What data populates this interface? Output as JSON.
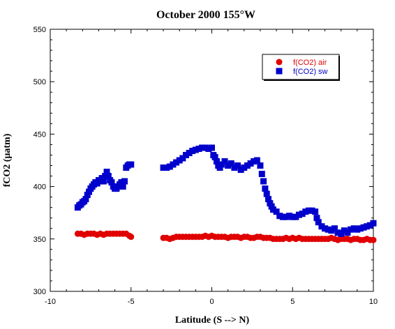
{
  "chart_data": {
    "type": "scatter",
    "title": "October 2000 155°W",
    "xlabel": "Latitude (S --> N)",
    "ylabel": "fCO2 (μatm)",
    "xlim": [
      -10,
      10
    ],
    "ylim": [
      300,
      550
    ],
    "xticks": [
      -10,
      -5,
      0,
      5,
      10
    ],
    "yticks": [
      300,
      350,
      400,
      450,
      500,
      550
    ],
    "xtick_labels": [
      "-10",
      "-5",
      "0",
      "5",
      "10"
    ],
    "ytick_labels": [
      "300",
      "350",
      "400",
      "450",
      "500",
      "550"
    ],
    "grid": false,
    "legend_position": "top-right",
    "series": [
      {
        "name": "f(CO2) air",
        "color": "#e00000",
        "marker": "circle",
        "x": [
          -8.3,
          -8.1,
          -7.9,
          -7.7,
          -7.5,
          -7.3,
          -7.1,
          -6.9,
          -6.7,
          -6.5,
          -6.3,
          -6.1,
          -5.9,
          -5.7,
          -5.5,
          -5.3,
          -5.1,
          -5.0,
          -3.0,
          -2.8,
          -2.6,
          -2.4,
          -2.2,
          -2.0,
          -1.8,
          -1.6,
          -1.4,
          -1.2,
          -1.0,
          -0.8,
          -0.6,
          -0.4,
          -0.2,
          0.0,
          0.2,
          0.4,
          0.6,
          0.8,
          1.0,
          1.2,
          1.4,
          1.6,
          1.8,
          2.0,
          2.2,
          2.4,
          2.6,
          2.8,
          3.0,
          3.2,
          3.4,
          3.6,
          3.8,
          4.0,
          4.2,
          4.4,
          4.6,
          4.8,
          5.0,
          5.2,
          5.4,
          5.6,
          5.8,
          6.0,
          6.2,
          6.4,
          6.6,
          6.8,
          7.0,
          7.2,
          7.4,
          7.6,
          7.8,
          8.0,
          8.2,
          8.4,
          8.6,
          8.8,
          9.0,
          9.2,
          9.4,
          9.6,
          9.8,
          10.0
        ],
        "y": [
          355,
          355,
          354,
          355,
          355,
          355,
          354,
          355,
          354,
          355,
          355,
          355,
          355,
          355,
          355,
          355,
          353,
          352,
          351,
          351,
          350,
          351,
          352,
          352,
          352,
          352,
          352,
          352,
          352,
          352,
          352,
          353,
          352,
          353,
          352,
          352,
          352,
          352,
          351,
          352,
          352,
          352,
          351,
          352,
          352,
          351,
          351,
          352,
          352,
          351,
          351,
          351,
          350,
          350,
          350,
          350,
          351,
          350,
          351,
          350,
          351,
          350,
          350,
          350,
          350,
          350,
          350,
          350,
          350,
          350,
          351,
          350,
          349,
          350,
          350,
          350,
          349,
          350,
          350,
          349,
          349,
          350,
          349,
          349
        ]
      },
      {
        "name": "f(CO2) sw",
        "color": "#0000cc",
        "marker": "square",
        "x": [
          -8.3,
          -8.2,
          -8.1,
          -8.0,
          -7.9,
          -7.8,
          -7.7,
          -7.6,
          -7.5,
          -7.4,
          -7.3,
          -7.2,
          -7.1,
          -7.0,
          -6.9,
          -6.8,
          -6.7,
          -6.6,
          -6.5,
          -6.4,
          -6.3,
          -6.2,
          -6.1,
          -6.0,
          -5.9,
          -5.8,
          -5.7,
          -5.6,
          -5.5,
          -5.4,
          -5.3,
          -5.2,
          -5.1,
          -5.0,
          -3.0,
          -2.8,
          -2.6,
          -2.4,
          -2.2,
          -2.0,
          -1.8,
          -1.6,
          -1.4,
          -1.2,
          -1.0,
          -0.8,
          -0.6,
          -0.4,
          -0.2,
          0.0,
          0.1,
          0.2,
          0.3,
          0.4,
          0.5,
          0.6,
          0.8,
          1.0,
          1.2,
          1.4,
          1.6,
          1.8,
          2.0,
          2.2,
          2.4,
          2.6,
          2.8,
          3.0,
          3.1,
          3.2,
          3.3,
          3.4,
          3.5,
          3.6,
          3.7,
          3.8,
          4.0,
          4.2,
          4.4,
          4.6,
          4.8,
          5.0,
          5.2,
          5.4,
          5.6,
          5.8,
          6.0,
          6.2,
          6.4,
          6.5,
          6.6,
          6.8,
          7.0,
          7.2,
          7.4,
          7.6,
          7.8,
          8.0,
          8.2,
          8.4,
          8.6,
          8.8,
          9.0,
          9.2,
          9.4,
          9.6,
          9.8,
          10.0
        ],
        "y": [
          380,
          382,
          383,
          385,
          386,
          388,
          392,
          395,
          398,
          400,
          402,
          404,
          403,
          406,
          405,
          408,
          405,
          410,
          414,
          410,
          406,
          404,
          400,
          398,
          398,
          400,
          402,
          404,
          400,
          405,
          418,
          420,
          421,
          421,
          418,
          418,
          419,
          421,
          423,
          425,
          427,
          430,
          432,
          434,
          435,
          436,
          437,
          437,
          436,
          437,
          430,
          428,
          424,
          420,
          418,
          421,
          424,
          420,
          422,
          418,
          420,
          416,
          418,
          420,
          422,
          424,
          425,
          420,
          412,
          405,
          398,
          393,
          388,
          384,
          381,
          378,
          376,
          372,
          371,
          371,
          372,
          371,
          371,
          373,
          374,
          376,
          377,
          377,
          376,
          370,
          366,
          362,
          360,
          359,
          358,
          360,
          356,
          355,
          358,
          356,
          359,
          360,
          359,
          360,
          361,
          362,
          363,
          365
        ]
      }
    ]
  }
}
